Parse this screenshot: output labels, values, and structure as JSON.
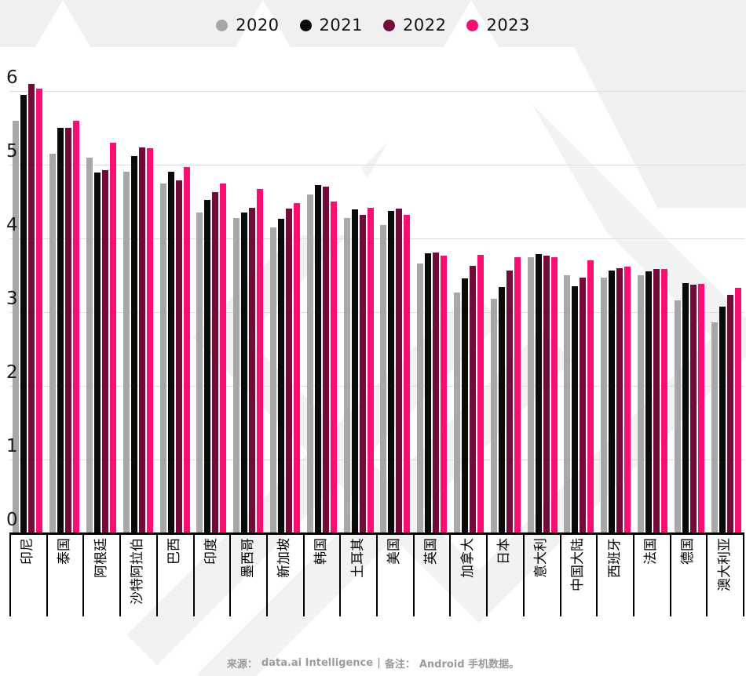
{
  "legend": {
    "items": [
      {
        "label": "2020",
        "color": "#a7a7a7"
      },
      {
        "label": "2021",
        "color": "#0a0a0a"
      },
      {
        "label": "2022",
        "color": "#730b3a"
      },
      {
        "label": "2023",
        "color": "#fa0e72"
      }
    ]
  },
  "chart_data": {
    "type": "bar",
    "title": "",
    "categories": [
      "印尼",
      "泰国",
      "阿根廷",
      "沙特阿拉伯",
      "巴西",
      "印度",
      "墨西哥",
      "新加坡",
      "韩国",
      "土耳其",
      "美国",
      "英国",
      "加拿大",
      "日本",
      "意大利",
      "中国大陆",
      "西班牙",
      "法国",
      "德国",
      "澳大利亚"
    ],
    "series": [
      {
        "name": "2020",
        "color": "#a7a7a7",
        "values": [
          5.6,
          5.15,
          5.1,
          4.9,
          4.75,
          4.35,
          4.28,
          4.15,
          4.6,
          4.28,
          4.18,
          3.66,
          3.27,
          3.18,
          3.74,
          3.5,
          3.47,
          3.5,
          3.16,
          2.86
        ]
      },
      {
        "name": "2021",
        "color": "#0a0a0a",
        "values": [
          5.95,
          5.5,
          4.89,
          5.12,
          4.9,
          4.52,
          4.35,
          4.27,
          4.72,
          4.39,
          4.37,
          3.8,
          3.46,
          3.34,
          3.79,
          3.35,
          3.56,
          3.55,
          3.39,
          3.07
        ]
      },
      {
        "name": "2022",
        "color": "#730b3a",
        "values": [
          6.1,
          5.5,
          4.93,
          5.23,
          4.79,
          4.63,
          4.42,
          4.4,
          4.7,
          4.32,
          4.4,
          3.81,
          3.63,
          3.56,
          3.77,
          3.47,
          3.6,
          3.59,
          3.37,
          3.23
        ]
      },
      {
        "name": "2023",
        "color": "#fa0e72",
        "values": [
          6.03,
          5.6,
          5.3,
          5.22,
          4.97,
          4.74,
          4.67,
          4.48,
          4.5,
          4.42,
          4.32,
          3.77,
          3.78,
          3.75,
          3.74,
          3.7,
          3.62,
          3.59,
          3.38,
          3.33
        ]
      }
    ],
    "ylim": [
      0,
      6.2
    ],
    "yticks": [
      0,
      1,
      2,
      3,
      4,
      5,
      6
    ],
    "grid": "horizontal",
    "legend_position": "top",
    "x_label_rotation": -90,
    "source_note": "来源：data.ai Intelligence | 备注：Android 手机数据。"
  },
  "footer": {
    "source_label": "来源：",
    "source_value": "data.ai Intelligence",
    "separator": "|",
    "note_label": "备注：",
    "note_value": "Android 手机数据。"
  }
}
